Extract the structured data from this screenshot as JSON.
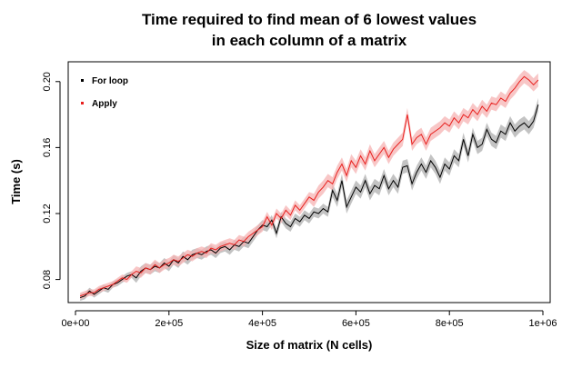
{
  "chart_data": {
    "type": "line",
    "title_line1": "Time required to find mean of 6 lowest values",
    "title_line2": "in each column of a matrix",
    "xlabel": "Size of matrix (N cells)",
    "ylabel": "Time (s)",
    "xlim": [
      0,
      1000000
    ],
    "ylim": [
      0.066,
      0.212
    ],
    "x_ticks": [
      0,
      200000,
      400000,
      600000,
      800000,
      1000000
    ],
    "x_tick_labels": [
      "0e+00",
      "2e+05",
      "4e+05",
      "6e+05",
      "8e+05",
      "1e+06"
    ],
    "y_ticks": [
      0.08,
      0.12,
      0.16,
      0.2
    ],
    "y_tick_labels": [
      "0.08",
      "0.12",
      "0.16",
      "0.20"
    ],
    "grid": false,
    "legend_position": "top-left",
    "series": [
      {
        "name": "For loop",
        "line_color": "#000000",
        "band_color": "#b8b8b8",
        "x": [
          10000,
          20000,
          30000,
          40000,
          50000,
          60000,
          70000,
          80000,
          90000,
          100000,
          110000,
          120000,
          130000,
          140000,
          150000,
          160000,
          170000,
          180000,
          190000,
          200000,
          210000,
          220000,
          230000,
          240000,
          250000,
          260000,
          270000,
          280000,
          290000,
          300000,
          310000,
          320000,
          330000,
          340000,
          350000,
          360000,
          370000,
          380000,
          390000,
          400000,
          410000,
          420000,
          430000,
          440000,
          450000,
          460000,
          470000,
          480000,
          490000,
          500000,
          510000,
          520000,
          530000,
          540000,
          550000,
          560000,
          570000,
          580000,
          590000,
          600000,
          610000,
          620000,
          630000,
          640000,
          650000,
          660000,
          670000,
          680000,
          690000,
          700000,
          710000,
          720000,
          730000,
          740000,
          750000,
          760000,
          770000,
          780000,
          790000,
          800000,
          810000,
          820000,
          830000,
          840000,
          850000,
          860000,
          870000,
          880000,
          890000,
          900000,
          910000,
          920000,
          930000,
          940000,
          950000,
          960000,
          970000,
          980000,
          990000
        ],
        "y": [
          0.069,
          0.07,
          0.073,
          0.071,
          0.073,
          0.075,
          0.074,
          0.077,
          0.078,
          0.08,
          0.082,
          0.083,
          0.081,
          0.085,
          0.087,
          0.086,
          0.088,
          0.087,
          0.09,
          0.088,
          0.092,
          0.09,
          0.094,
          0.092,
          0.095,
          0.096,
          0.095,
          0.097,
          0.098,
          0.096,
          0.099,
          0.1,
          0.098,
          0.101,
          0.1,
          0.103,
          0.102,
          0.106,
          0.11,
          0.113,
          0.112,
          0.116,
          0.108,
          0.118,
          0.114,
          0.112,
          0.117,
          0.115,
          0.119,
          0.117,
          0.121,
          0.12,
          0.123,
          0.121,
          0.134,
          0.128,
          0.14,
          0.124,
          0.13,
          0.136,
          0.133,
          0.14,
          0.132,
          0.137,
          0.135,
          0.143,
          0.135,
          0.14,
          0.136,
          0.148,
          0.149,
          0.138,
          0.145,
          0.15,
          0.145,
          0.152,
          0.148,
          0.142,
          0.15,
          0.147,
          0.155,
          0.152,
          0.165,
          0.155,
          0.168,
          0.16,
          0.162,
          0.171,
          0.165,
          0.163,
          0.17,
          0.168,
          0.175,
          0.17,
          0.173,
          0.175,
          0.172,
          0.176,
          0.186
        ],
        "band": [
          0.002,
          0.002,
          0.002,
          0.002,
          0.002,
          0.002,
          0.002,
          0.002,
          0.002,
          0.002,
          0.002,
          0.002,
          0.003,
          0.003,
          0.003,
          0.003,
          0.003,
          0.003,
          0.003,
          0.003,
          0.003,
          0.003,
          0.003,
          0.003,
          0.003,
          0.003,
          0.003,
          0.003,
          0.003,
          0.003,
          0.003,
          0.003,
          0.003,
          0.003,
          0.003,
          0.003,
          0.003,
          0.003,
          0.003,
          0.003,
          0.003,
          0.003,
          0.003,
          0.003,
          0.003,
          0.003,
          0.003,
          0.003,
          0.003,
          0.003,
          0.003,
          0.003,
          0.003,
          0.003,
          0.004,
          0.004,
          0.004,
          0.004,
          0.004,
          0.004,
          0.004,
          0.004,
          0.004,
          0.004,
          0.004,
          0.004,
          0.004,
          0.004,
          0.004,
          0.004,
          0.004,
          0.004,
          0.004,
          0.004,
          0.004,
          0.004,
          0.004,
          0.004,
          0.004,
          0.004,
          0.004,
          0.004,
          0.004,
          0.004,
          0.004,
          0.004,
          0.004,
          0.004,
          0.004,
          0.004,
          0.004,
          0.004,
          0.004,
          0.004,
          0.004,
          0.004,
          0.004,
          0.004,
          0.004
        ]
      },
      {
        "name": "Apply",
        "line_color": "#e8201e",
        "band_color": "#f5b3b3",
        "x": [
          10000,
          20000,
          30000,
          40000,
          50000,
          60000,
          70000,
          80000,
          90000,
          100000,
          110000,
          120000,
          130000,
          140000,
          150000,
          160000,
          170000,
          180000,
          190000,
          200000,
          210000,
          220000,
          230000,
          240000,
          250000,
          260000,
          270000,
          280000,
          290000,
          300000,
          310000,
          320000,
          330000,
          340000,
          350000,
          360000,
          370000,
          380000,
          390000,
          400000,
          410000,
          420000,
          430000,
          440000,
          450000,
          460000,
          470000,
          480000,
          490000,
          500000,
          510000,
          520000,
          530000,
          540000,
          550000,
          560000,
          570000,
          580000,
          590000,
          600000,
          610000,
          620000,
          630000,
          640000,
          650000,
          660000,
          670000,
          680000,
          690000,
          700000,
          710000,
          720000,
          730000,
          740000,
          750000,
          760000,
          770000,
          780000,
          790000,
          800000,
          810000,
          820000,
          830000,
          840000,
          850000,
          860000,
          870000,
          880000,
          890000,
          900000,
          910000,
          920000,
          930000,
          940000,
          950000,
          960000,
          970000,
          980000,
          990000
        ],
        "y": [
          0.07,
          0.071,
          0.072,
          0.072,
          0.074,
          0.075,
          0.076,
          0.077,
          0.079,
          0.081,
          0.08,
          0.083,
          0.085,
          0.084,
          0.087,
          0.086,
          0.089,
          0.087,
          0.089,
          0.09,
          0.092,
          0.091,
          0.093,
          0.095,
          0.094,
          0.096,
          0.097,
          0.096,
          0.099,
          0.098,
          0.1,
          0.101,
          0.102,
          0.101,
          0.104,
          0.103,
          0.106,
          0.108,
          0.11,
          0.112,
          0.118,
          0.113,
          0.12,
          0.117,
          0.122,
          0.119,
          0.125,
          0.122,
          0.126,
          0.13,
          0.128,
          0.133,
          0.136,
          0.14,
          0.138,
          0.145,
          0.15,
          0.143,
          0.152,
          0.148,
          0.155,
          0.15,
          0.158,
          0.152,
          0.156,
          0.16,
          0.154,
          0.159,
          0.162,
          0.165,
          0.18,
          0.162,
          0.166,
          0.168,
          0.162,
          0.168,
          0.17,
          0.172,
          0.175,
          0.173,
          0.178,
          0.175,
          0.18,
          0.178,
          0.183,
          0.18,
          0.185,
          0.182,
          0.187,
          0.186,
          0.19,
          0.188,
          0.193,
          0.196,
          0.2,
          0.203,
          0.201,
          0.198,
          0.201
        ],
        "band": [
          0.002,
          0.002,
          0.002,
          0.002,
          0.002,
          0.002,
          0.002,
          0.002,
          0.002,
          0.002,
          0.002,
          0.002,
          0.003,
          0.003,
          0.003,
          0.003,
          0.003,
          0.003,
          0.003,
          0.003,
          0.003,
          0.003,
          0.003,
          0.003,
          0.003,
          0.003,
          0.003,
          0.003,
          0.003,
          0.003,
          0.003,
          0.003,
          0.003,
          0.003,
          0.003,
          0.003,
          0.003,
          0.003,
          0.003,
          0.003,
          0.003,
          0.003,
          0.003,
          0.003,
          0.003,
          0.003,
          0.003,
          0.003,
          0.003,
          0.003,
          0.004,
          0.004,
          0.004,
          0.004,
          0.004,
          0.004,
          0.004,
          0.004,
          0.004,
          0.004,
          0.004,
          0.004,
          0.004,
          0.004,
          0.004,
          0.004,
          0.004,
          0.004,
          0.004,
          0.004,
          0.004,
          0.004,
          0.004,
          0.004,
          0.004,
          0.004,
          0.004,
          0.004,
          0.004,
          0.004,
          0.004,
          0.004,
          0.004,
          0.004,
          0.004,
          0.004,
          0.004,
          0.004,
          0.004,
          0.004,
          0.004,
          0.004,
          0.004,
          0.004,
          0.004,
          0.004,
          0.004,
          0.004,
          0.004
        ]
      }
    ]
  }
}
